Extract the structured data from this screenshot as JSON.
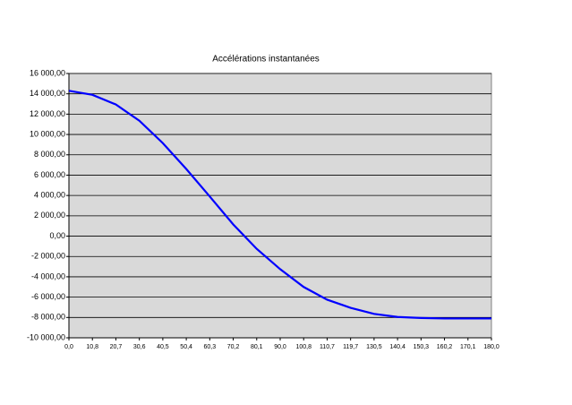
{
  "chart_data": {
    "type": "line",
    "title": "Accélérations instantanées",
    "categories": [
      "0,0",
      "10,8",
      "20,7",
      "30,6",
      "40,5",
      "50,4",
      "60,3",
      "70,2",
      "80,1",
      "90,0",
      "100,8",
      "110,7",
      "119,7",
      "130,5",
      "140,4",
      "150,3",
      "160,2",
      "170,1",
      "180,0"
    ],
    "series": [
      {
        "name": "Accélérations instantanées",
        "color": "#0000ff",
        "values": [
          14300,
          13900,
          12950,
          11350,
          9150,
          6600,
          3900,
          1150,
          -1250,
          -3250,
          -5000,
          -6250,
          -7050,
          -7650,
          -7950,
          -8050,
          -8100,
          -8100,
          -8100
        ]
      }
    ],
    "ylim": [
      -10000,
      16000
    ],
    "yticks": [
      {
        "value": -10000,
        "label": "-10 000,00"
      },
      {
        "value": -8000,
        "label": "-8 000,00"
      },
      {
        "value": -6000,
        "label": "-6 000,00"
      },
      {
        "value": -4000,
        "label": "-4 000,00"
      },
      {
        "value": -2000,
        "label": "-2 000,00"
      },
      {
        "value": 0,
        "label": "0,00"
      },
      {
        "value": 2000,
        "label": "2 000,00"
      },
      {
        "value": 4000,
        "label": "4 000,00"
      },
      {
        "value": 6000,
        "label": "6 000,00"
      },
      {
        "value": 8000,
        "label": "8 000,00"
      },
      {
        "value": 10000,
        "label": "10 000,00"
      },
      {
        "value": 12000,
        "label": "12 000,00"
      },
      {
        "value": 14000,
        "label": "14 000,00"
      },
      {
        "value": 16000,
        "label": "16 000,00"
      }
    ],
    "grid": true,
    "plot_background": "#d9d9d9"
  }
}
